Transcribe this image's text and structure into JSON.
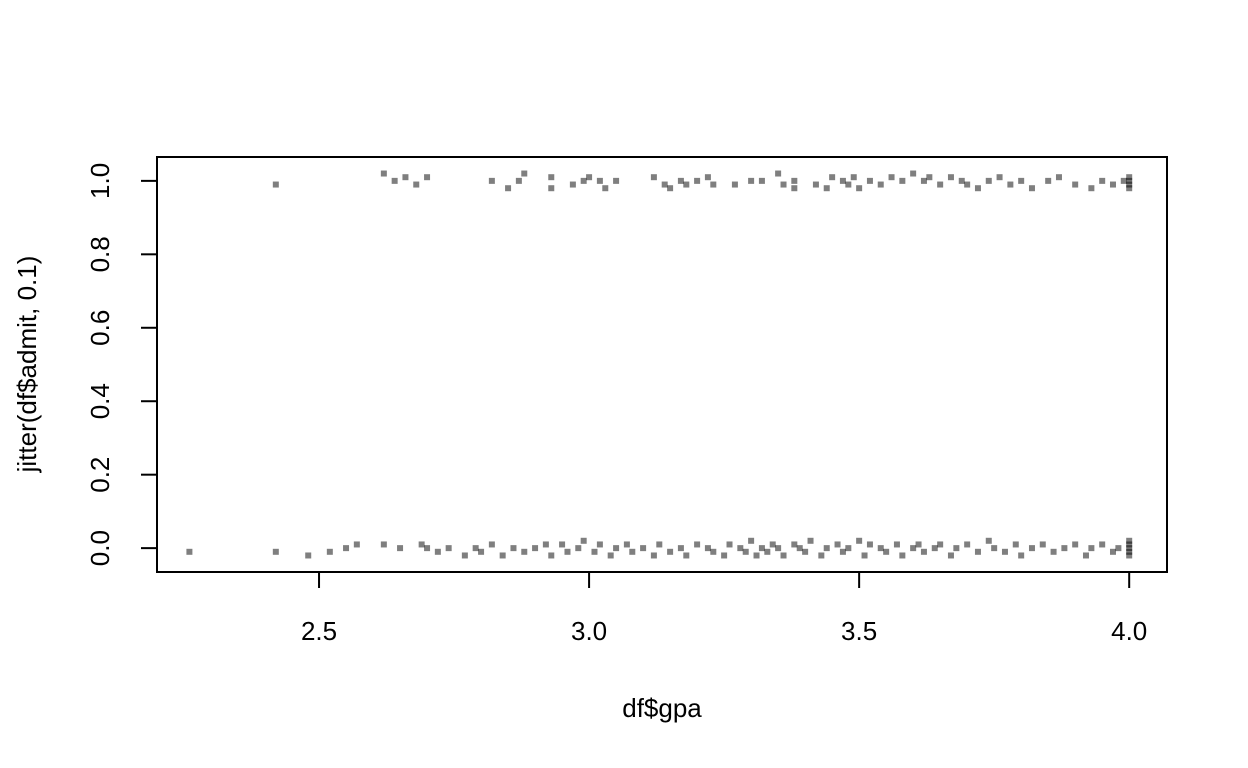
{
  "chart_data": {
    "type": "scatter",
    "title": "",
    "xlabel": "df$gpa",
    "ylabel": "jitter(df$admit, 0.1)",
    "xlim": [
      2.2,
      4.07
    ],
    "ylim": [
      -0.065,
      1.065
    ],
    "x_ticks": [
      "2.5",
      "3.0",
      "3.5",
      "4.0"
    ],
    "y_ticks": [
      "0.0",
      "0.2",
      "0.4",
      "0.6",
      "0.8",
      "1.0"
    ],
    "grid": false,
    "point_color": "#000000",
    "point_alpha": 0.5,
    "series": [
      {
        "values": [
          [
            2.42,
            0.99
          ],
          [
            2.62,
            1.02
          ],
          [
            2.64,
            1.0
          ],
          [
            2.66,
            1.01
          ],
          [
            2.68,
            0.99
          ],
          [
            2.7,
            1.01
          ],
          [
            2.82,
            1.0
          ],
          [
            2.85,
            0.98
          ],
          [
            2.87,
            1.0
          ],
          [
            2.88,
            1.02
          ],
          [
            2.93,
            1.01
          ],
          [
            2.93,
            0.98
          ],
          [
            2.97,
            0.99
          ],
          [
            2.99,
            1.0
          ],
          [
            3.0,
            1.01
          ],
          [
            3.02,
            1.0
          ],
          [
            3.03,
            0.98
          ],
          [
            3.05,
            1.0
          ],
          [
            3.12,
            1.01
          ],
          [
            3.14,
            0.99
          ],
          [
            3.15,
            0.98
          ],
          [
            3.17,
            1.0
          ],
          [
            3.18,
            0.99
          ],
          [
            3.2,
            1.0
          ],
          [
            3.22,
            1.01
          ],
          [
            3.23,
            0.99
          ],
          [
            3.27,
            0.99
          ],
          [
            3.3,
            1.0
          ],
          [
            3.32,
            1.0
          ],
          [
            3.35,
            1.02
          ],
          [
            3.36,
            0.99
          ],
          [
            3.38,
            1.0
          ],
          [
            3.38,
            0.98
          ],
          [
            3.42,
            0.99
          ],
          [
            3.44,
            0.98
          ],
          [
            3.45,
            1.01
          ],
          [
            3.47,
            1.0
          ],
          [
            3.48,
            0.99
          ],
          [
            3.49,
            1.01
          ],
          [
            3.5,
            0.98
          ],
          [
            3.52,
            1.0
          ],
          [
            3.54,
            0.99
          ],
          [
            3.56,
            1.01
          ],
          [
            3.58,
            1.0
          ],
          [
            3.6,
            1.02
          ],
          [
            3.62,
            1.0
          ],
          [
            3.63,
            1.01
          ],
          [
            3.65,
            0.99
          ],
          [
            3.67,
            1.01
          ],
          [
            3.69,
            1.0
          ],
          [
            3.7,
            0.99
          ],
          [
            3.72,
            0.98
          ],
          [
            3.74,
            1.0
          ],
          [
            3.76,
            1.01
          ],
          [
            3.78,
            0.99
          ],
          [
            3.8,
            1.0
          ],
          [
            3.82,
            0.98
          ],
          [
            3.85,
            1.0
          ],
          [
            3.87,
            1.01
          ],
          [
            3.9,
            0.99
          ],
          [
            3.93,
            0.98
          ],
          [
            3.95,
            1.0
          ],
          [
            3.97,
            0.99
          ],
          [
            3.99,
            1.0
          ],
          [
            4.0,
            1.01
          ],
          [
            4.0,
            0.99
          ],
          [
            4.0,
            0.98
          ],
          [
            4.0,
            1.0
          ],
          [
            2.26,
            -0.01
          ],
          [
            2.42,
            -0.01
          ],
          [
            2.48,
            -0.02
          ],
          [
            2.52,
            -0.01
          ],
          [
            2.55,
            0.0
          ],
          [
            2.57,
            0.01
          ],
          [
            2.62,
            0.01
          ],
          [
            2.65,
            0.0
          ],
          [
            2.69,
            0.01
          ],
          [
            2.7,
            0.0
          ],
          [
            2.72,
            -0.01
          ],
          [
            2.74,
            0.0
          ],
          [
            2.77,
            -0.02
          ],
          [
            2.79,
            0.0
          ],
          [
            2.8,
            -0.01
          ],
          [
            2.82,
            0.01
          ],
          [
            2.84,
            -0.02
          ],
          [
            2.86,
            0.0
          ],
          [
            2.88,
            -0.01
          ],
          [
            2.9,
            0.0
          ],
          [
            2.92,
            0.01
          ],
          [
            2.93,
            -0.02
          ],
          [
            2.95,
            0.01
          ],
          [
            2.96,
            -0.01
          ],
          [
            2.98,
            0.0
          ],
          [
            2.99,
            0.02
          ],
          [
            3.01,
            -0.01
          ],
          [
            3.02,
            0.01
          ],
          [
            3.04,
            -0.02
          ],
          [
            3.05,
            0.0
          ],
          [
            3.07,
            0.01
          ],
          [
            3.08,
            -0.01
          ],
          [
            3.1,
            0.0
          ],
          [
            3.12,
            -0.02
          ],
          [
            3.13,
            0.01
          ],
          [
            3.15,
            -0.01
          ],
          [
            3.17,
            0.0
          ],
          [
            3.18,
            -0.02
          ],
          [
            3.2,
            0.01
          ],
          [
            3.22,
            0.0
          ],
          [
            3.23,
            -0.01
          ],
          [
            3.25,
            -0.02
          ],
          [
            3.26,
            0.01
          ],
          [
            3.28,
            0.0
          ],
          [
            3.29,
            -0.01
          ],
          [
            3.3,
            0.02
          ],
          [
            3.31,
            -0.02
          ],
          [
            3.32,
            0.0
          ],
          [
            3.33,
            -0.01
          ],
          [
            3.34,
            0.01
          ],
          [
            3.35,
            0.0
          ],
          [
            3.36,
            -0.02
          ],
          [
            3.38,
            0.01
          ],
          [
            3.39,
            0.0
          ],
          [
            3.4,
            -0.01
          ],
          [
            3.41,
            0.02
          ],
          [
            3.43,
            -0.02
          ],
          [
            3.44,
            0.0
          ],
          [
            3.46,
            0.01
          ],
          [
            3.47,
            -0.01
          ],
          [
            3.48,
            0.0
          ],
          [
            3.5,
            0.02
          ],
          [
            3.51,
            -0.02
          ],
          [
            3.52,
            0.01
          ],
          [
            3.54,
            0.0
          ],
          [
            3.55,
            -0.01
          ],
          [
            3.57,
            0.01
          ],
          [
            3.58,
            -0.02
          ],
          [
            3.6,
            0.0
          ],
          [
            3.61,
            0.01
          ],
          [
            3.62,
            -0.01
          ],
          [
            3.64,
            0.0
          ],
          [
            3.65,
            0.01
          ],
          [
            3.67,
            -0.02
          ],
          [
            3.68,
            0.0
          ],
          [
            3.7,
            0.01
          ],
          [
            3.72,
            -0.01
          ],
          [
            3.74,
            0.02
          ],
          [
            3.75,
            0.0
          ],
          [
            3.77,
            -0.01
          ],
          [
            3.79,
            0.01
          ],
          [
            3.8,
            -0.02
          ],
          [
            3.82,
            0.0
          ],
          [
            3.84,
            0.01
          ],
          [
            3.86,
            -0.01
          ],
          [
            3.88,
            0.0
          ],
          [
            3.9,
            0.01
          ],
          [
            3.92,
            -0.02
          ],
          [
            3.93,
            0.0
          ],
          [
            3.95,
            0.01
          ],
          [
            3.97,
            -0.01
          ],
          [
            3.98,
            0.0
          ],
          [
            4.0,
            0.01
          ],
          [
            4.0,
            -0.01
          ],
          [
            4.0,
            -0.02
          ],
          [
            4.0,
            0.0
          ],
          [
            4.0,
            0.02
          ]
        ]
      }
    ]
  }
}
